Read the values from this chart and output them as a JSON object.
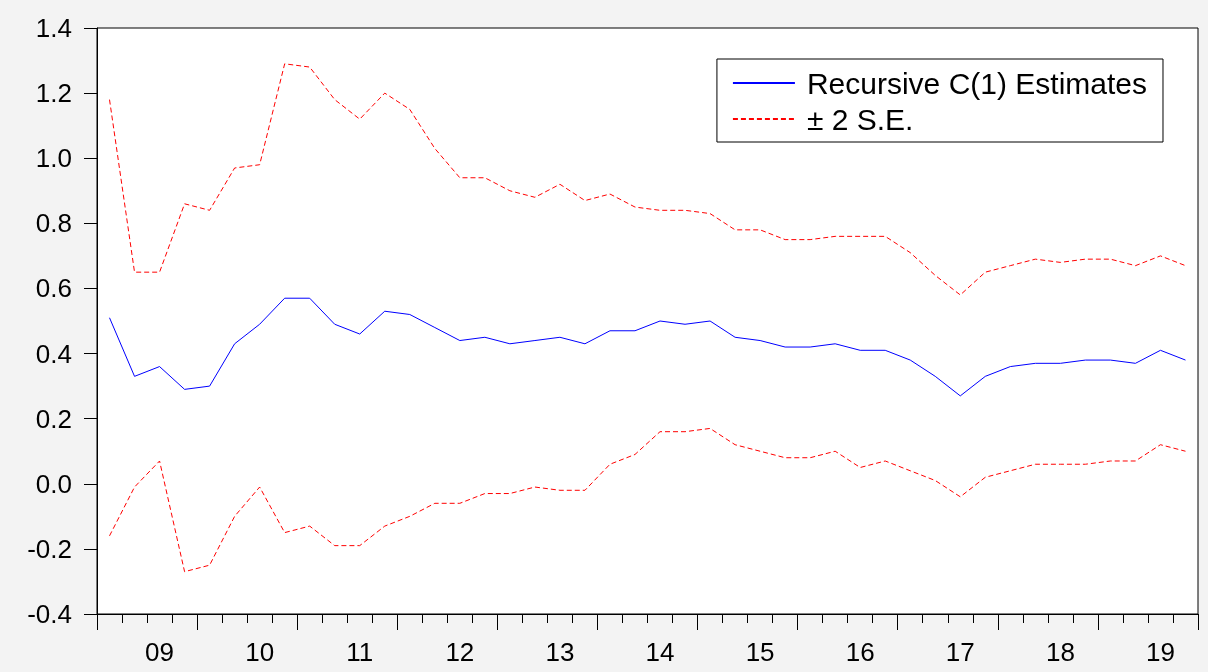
{
  "chart_data": {
    "type": "line",
    "categories": [
      null,
      null,
      "09",
      null,
      null,
      null,
      "10",
      null,
      null,
      null,
      "11",
      null,
      null,
      null,
      "12",
      null,
      null,
      null,
      "13",
      null,
      null,
      null,
      "14",
      null,
      null,
      null,
      "15",
      null,
      null,
      null,
      "16",
      null,
      null,
      null,
      "17",
      null,
      null,
      null,
      "18",
      null,
      null,
      null,
      "19",
      null
    ],
    "series": [
      {
        "name": "Recursive C(1) Estimates",
        "color": "#0000ff",
        "line_style": "solid",
        "values": [
          0.51,
          0.33,
          0.36,
          0.29,
          0.3,
          0.43,
          0.49,
          0.57,
          0.57,
          0.49,
          0.46,
          0.53,
          0.52,
          0.48,
          0.44,
          0.45,
          0.43,
          0.44,
          0.45,
          0.43,
          0.47,
          0.47,
          0.5,
          0.49,
          0.5,
          0.45,
          0.44,
          0.42,
          0.42,
          0.43,
          0.41,
          0.41,
          0.38,
          0.33,
          0.27,
          0.33,
          0.36,
          0.37,
          0.37,
          0.38,
          0.38,
          0.37,
          0.41,
          0.38
        ]
      },
      {
        "name": "± 2 S.E.",
        "color": "#ff0000",
        "line_style": "dashed",
        "values": [
          1.18,
          0.65,
          0.65,
          0.86,
          0.84,
          0.97,
          0.98,
          1.29,
          1.28,
          1.18,
          1.12,
          1.2,
          1.15,
          1.03,
          0.94,
          0.94,
          0.9,
          0.88,
          0.92,
          0.87,
          0.89,
          0.85,
          0.84,
          0.84,
          0.83,
          0.78,
          0.78,
          0.75,
          0.75,
          0.76,
          0.76,
          0.76,
          0.71,
          0.64,
          0.58,
          0.65,
          0.67,
          0.69,
          0.68,
          0.69,
          0.69,
          0.67,
          0.7,
          0.67
        ]
      },
      {
        "color": "#ff0000",
        "line_style": "dashed",
        "values": [
          -0.16,
          -0.01,
          0.07,
          -0.27,
          -0.25,
          -0.1,
          -0.01,
          -0.15,
          -0.13,
          -0.19,
          -0.19,
          -0.13,
          -0.1,
          -0.06,
          -0.06,
          -0.03,
          -0.03,
          -0.01,
          -0.02,
          -0.02,
          0.06,
          0.09,
          0.16,
          0.16,
          0.17,
          0.12,
          0.1,
          0.08,
          0.08,
          0.1,
          0.05,
          0.07,
          0.04,
          0.01,
          -0.04,
          0.02,
          0.04,
          0.06,
          0.06,
          0.06,
          0.07,
          0.07,
          0.12,
          0.1
        ]
      }
    ],
    "ylim": [
      -0.4,
      1.4
    ],
    "yticks": [
      -0.4,
      -0.2,
      {
        "value": 0,
        "label": "0.0"
      },
      0.2,
      0.4,
      0.6,
      0.8,
      {
        "value": 1,
        "label": "1.0"
      },
      1.2,
      1.4
    ],
    "grid": false,
    "legend": "top right",
    "marker": "none"
  }
}
